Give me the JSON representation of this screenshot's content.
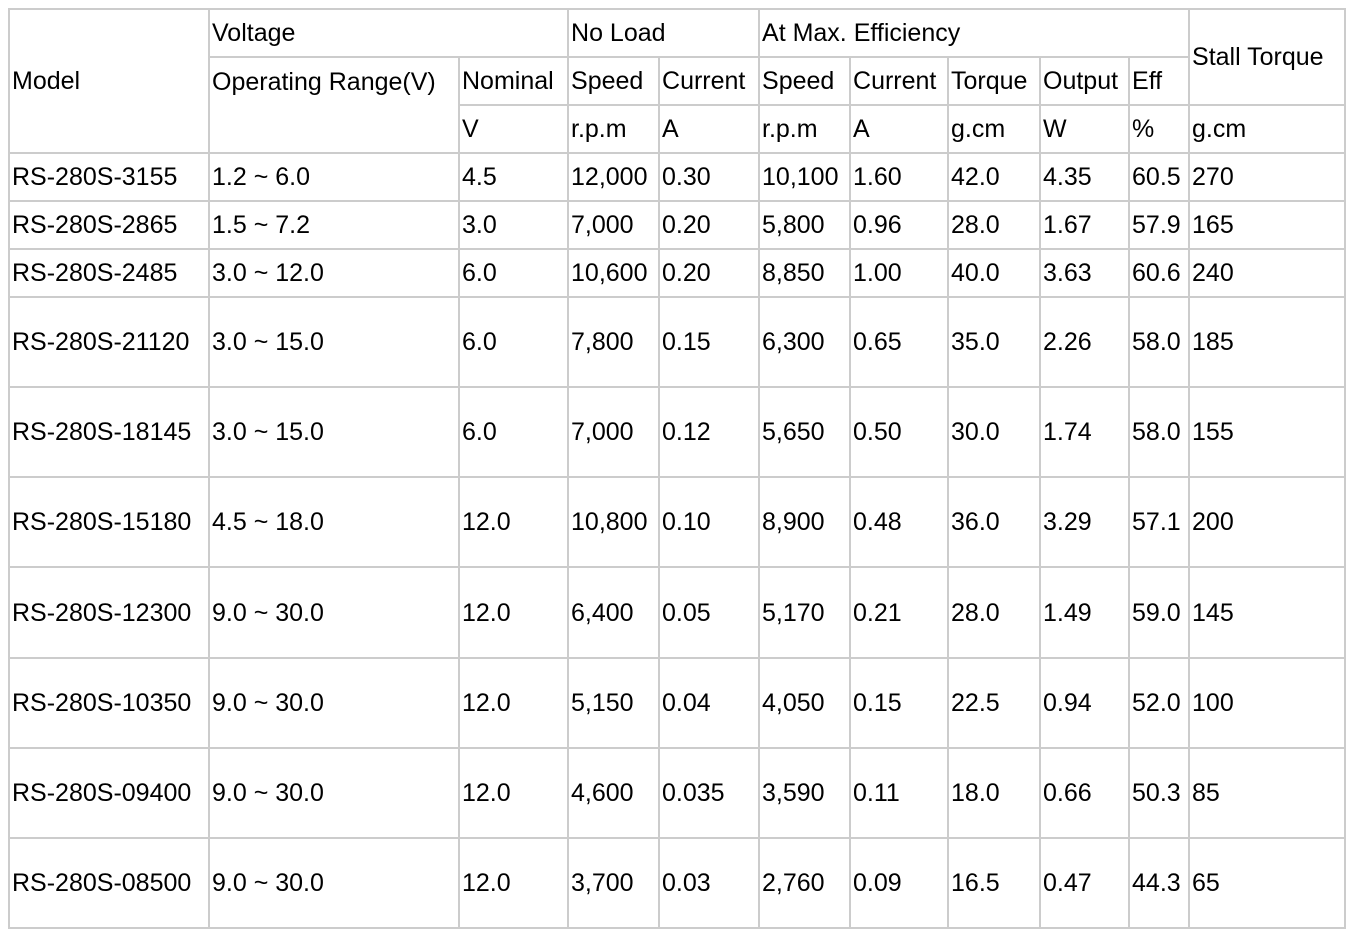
{
  "table": {
    "header": {
      "model": "Model",
      "voltage": "Voltage",
      "no_load": "No Load",
      "at_max_efficiency": "At Max. Efficiency",
      "stall_torque": "Stall Torque",
      "operating_range": "Operating Range(V)",
      "nominal": "Nominal",
      "nl_speed": "Speed",
      "nl_current": "Current",
      "me_speed": "Speed",
      "me_current": "Current",
      "me_torque": "Torque",
      "me_output": "Output",
      "me_eff": "Eff",
      "unit_nominal": "V",
      "unit_nl_speed": "r.p.m",
      "unit_nl_current": "A",
      "unit_me_speed": "r.p.m",
      "unit_me_current": "A",
      "unit_torque": "g.cm",
      "unit_output": "W",
      "unit_eff": "%",
      "unit_stall": "g.cm"
    },
    "rows": [
      [
        "RS-280S-3155",
        "1.2 ~ 6.0",
        "4.5",
        "12,000",
        "0.30",
        "10,100",
        "1.60",
        "42.0",
        "4.35",
        "60.5",
        "270"
      ],
      [
        "RS-280S-2865",
        "1.5 ~ 7.2",
        "3.0",
        "7,000",
        "0.20",
        "5,800",
        "0.96",
        "28.0",
        "1.67",
        "57.9",
        "165"
      ],
      [
        "RS-280S-2485",
        "3.0 ~ 12.0",
        "6.0",
        "10,600",
        "0.20",
        "8,850",
        "1.00",
        "40.0",
        "3.63",
        "60.6",
        "240"
      ],
      [
        "RS-280S-21120",
        "3.0 ~ 15.0",
        "6.0",
        "7,800",
        "0.15",
        "6,300",
        "0.65",
        "35.0",
        "2.26",
        "58.0",
        "185"
      ],
      [
        "RS-280S-18145",
        "3.0 ~ 15.0",
        "6.0",
        "7,000",
        "0.12",
        "5,650",
        "0.50",
        "30.0",
        "1.74",
        "58.0",
        "155"
      ],
      [
        "RS-280S-15180",
        "4.5 ~ 18.0",
        "12.0",
        "10,800",
        "0.10",
        "8,900",
        "0.48",
        "36.0",
        "3.29",
        "57.1",
        "200"
      ],
      [
        "RS-280S-12300",
        "9.0 ~ 30.0",
        "12.0",
        "6,400",
        "0.05",
        "5,170",
        "0.21",
        "28.0",
        "1.49",
        "59.0",
        "145"
      ],
      [
        "RS-280S-10350",
        "9.0 ~ 30.0",
        "12.0",
        "5,150",
        "0.04",
        "4,050",
        "0.15",
        "22.5",
        "0.94",
        "52.0",
        "100"
      ],
      [
        "RS-280S-09400",
        "9.0 ~ 30.0",
        "12.0",
        "4,600",
        "0.035",
        "3,590",
        "0.11",
        "18.0",
        "0.66",
        "50.3",
        "85"
      ],
      [
        "RS-280S-08500",
        "9.0 ~ 30.0",
        "12.0",
        "3,700",
        "0.03",
        "2,760",
        "0.09",
        "16.5",
        "0.47",
        "44.3",
        "65"
      ]
    ]
  }
}
